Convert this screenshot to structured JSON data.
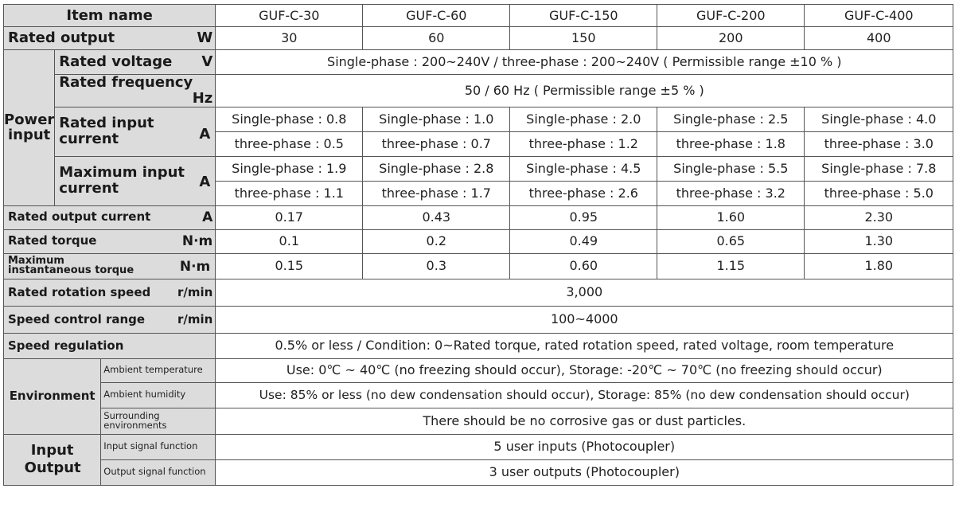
{
  "header": {
    "item_name": "Item name",
    "models": [
      "GUF-C-30",
      "GUF-C-60",
      "GUF-C-150",
      "GUF-C-200",
      "GUF-C-400"
    ]
  },
  "rated_output": {
    "label": "Rated output",
    "unit": "W",
    "values": [
      "30",
      "60",
      "150",
      "200",
      "400"
    ]
  },
  "power_input": {
    "group_label": "Power input",
    "voltage": {
      "label": "Rated voltage",
      "unit": "V",
      "value": "Single-phase : 200~240V / three-phase : 200~240V ( Permissible range  ±10 % )"
    },
    "frequency": {
      "label": "Rated frequency",
      "unit": "Hz",
      "value": "50 / 60 Hz ( Permissible range  ±5 % )"
    },
    "rated_input_current": {
      "label": "Rated input current",
      "unit": "A",
      "single": [
        "Single-phase : 0.8",
        "Single-phase : 1.0",
        "Single-phase : 2.0",
        "Single-phase : 2.5",
        "Single-phase : 4.0"
      ],
      "three": [
        "three-phase : 0.5",
        "three-phase : 0.7",
        "three-phase : 1.2",
        "three-phase : 1.8",
        "three-phase : 3.0"
      ]
    },
    "max_input_current": {
      "label": "Maximum input current",
      "unit": "A",
      "single": [
        "Single-phase : 1.9",
        "Single-phase : 2.8",
        "Single-phase : 4.5",
        "Single-phase : 5.5",
        "Single-phase : 7.8"
      ],
      "three": [
        "three-phase : 1.1",
        "three-phase : 1.7",
        "three-phase : 2.6",
        "three-phase : 3.2",
        "three-phase : 5.0"
      ]
    }
  },
  "rated_output_current": {
    "label": "Rated output current",
    "unit": "A",
    "values": [
      "0.17",
      "0.43",
      "0.95",
      "1.60",
      "2.30"
    ]
  },
  "rated_torque": {
    "label": "Rated torque",
    "unit": "N·m",
    "values": [
      "0.1",
      "0.2",
      "0.49",
      "0.65",
      "1.30"
    ]
  },
  "max_torque": {
    "label": "Maximum instantaneous torque",
    "unit": "N·m",
    "values": [
      "0.15",
      "0.3",
      "0.60",
      "1.15",
      "1.80"
    ]
  },
  "rated_speed": {
    "label": "Rated rotation speed",
    "unit": "r/min",
    "value": "3,000"
  },
  "speed_range": {
    "label": "Speed control range",
    "unit": "r/min",
    "value": "100~4000"
  },
  "speed_regulation": {
    "label": "Speed regulation",
    "value": "0.5% or less / Condition: 0~Rated torque, rated rotation speed, rated voltage, room temperature"
  },
  "environment": {
    "group_label": "Environment",
    "ambient_temperature": {
      "label": "Ambient temperature",
      "value": "Use: 0℃ ~ 40℃ (no freezing should occur), Storage: -20℃ ~ 70℃ (no freezing should occur)"
    },
    "ambient_humidity": {
      "label": "Ambient humidity",
      "value": "Use: 85% or less (no dew condensation should occur), Storage: 85% (no dew condensation should occur)"
    },
    "surrounding": {
      "label": "Surrounding environments",
      "value": "There should be no corrosive gas or dust particles."
    }
  },
  "io": {
    "group_label": "Input Output",
    "input": {
      "label": "Input signal function",
      "value": "5 user inputs (Photocoupler)"
    },
    "output": {
      "label": "Output signal function",
      "value": "3 user outputs (Photocoupler)"
    }
  }
}
